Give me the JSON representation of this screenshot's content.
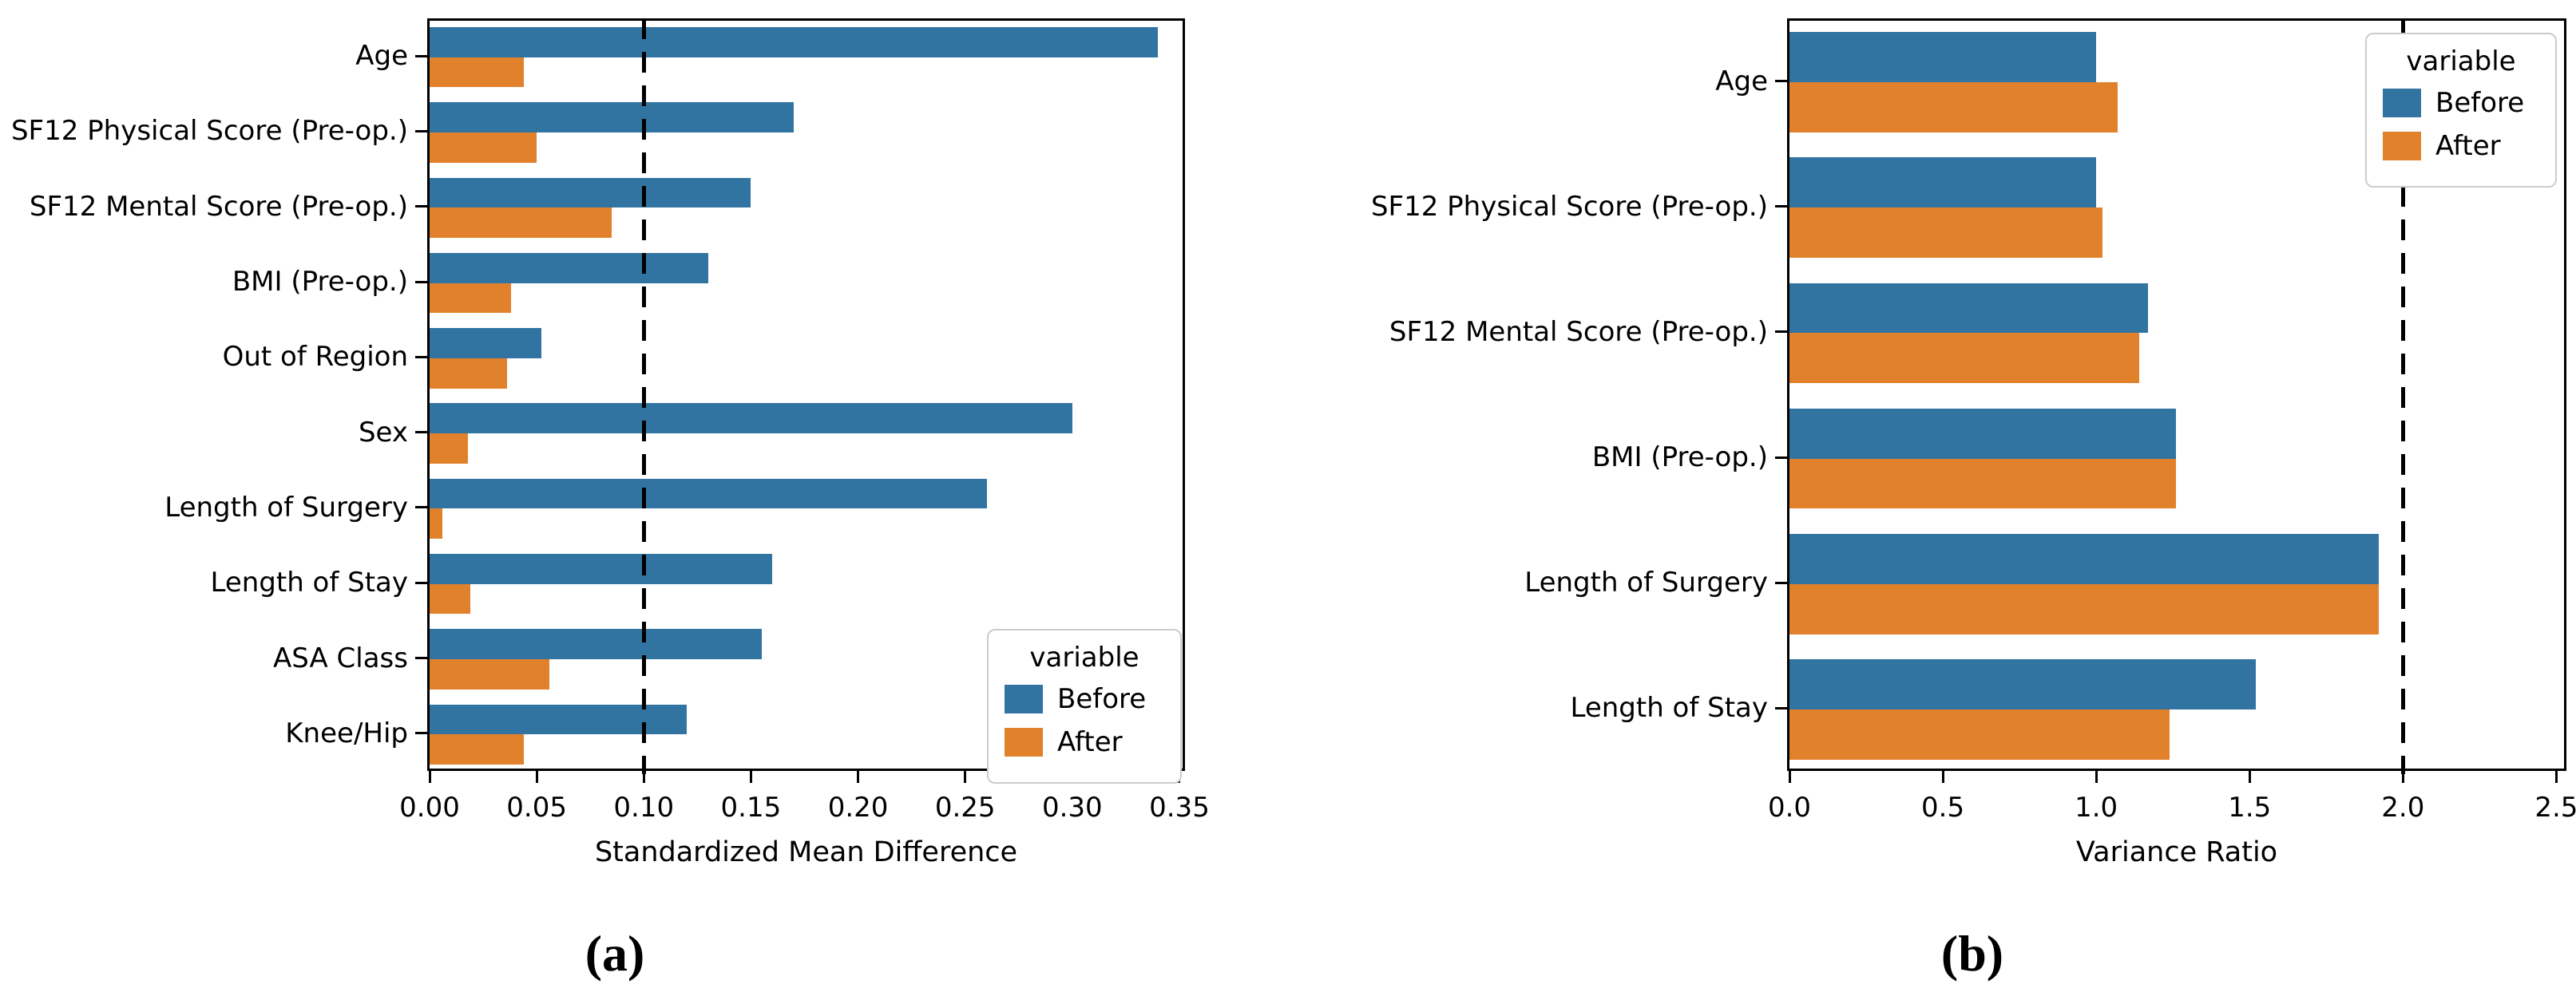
{
  "figure": {
    "colors": {
      "before": "#3274a1",
      "after": "#e1812c"
    },
    "captions": [
      "(a)",
      "(b)"
    ]
  },
  "chart_data": [
    {
      "type": "bar",
      "orientation": "horizontal",
      "caption": "(a)",
      "xlabel": "Standardized Mean Difference",
      "legend_title": "variable",
      "legend_entries": [
        "Before",
        "After"
      ],
      "legend_position": "lower-right",
      "grid": false,
      "categories": [
        "Age",
        "SF12 Physical Score (Pre-op.)",
        "SF12 Mental Score (Pre-op.)",
        "BMI (Pre-op.)",
        "Out of Region",
        "Sex",
        "Length of Surgery",
        "Length of Stay",
        "ASA Class",
        "Knee/Hip"
      ],
      "series": [
        {
          "name": "Before",
          "values": [
            0.34,
            0.17,
            0.15,
            0.13,
            0.052,
            0.3,
            0.26,
            0.16,
            0.155,
            0.12
          ]
        },
        {
          "name": "After",
          "values": [
            0.044,
            0.05,
            0.085,
            0.038,
            0.036,
            0.018,
            0.006,
            0.019,
            0.056,
            0.044
          ]
        }
      ],
      "xlim": [
        0,
        0.3515
      ],
      "xticks": [
        0.0,
        0.05,
        0.1,
        0.15,
        0.2,
        0.25,
        0.3,
        0.35
      ],
      "xtick_decimals": 2,
      "reference_line_x": 0.1
    },
    {
      "type": "bar",
      "orientation": "horizontal",
      "caption": "(b)",
      "xlabel": "Variance Ratio",
      "legend_title": "variable",
      "legend_entries": [
        "Before",
        "After"
      ],
      "legend_position": "upper-right",
      "grid": false,
      "categories": [
        "Age",
        "SF12 Physical Score (Pre-op.)",
        "SF12 Mental Score (Pre-op.)",
        "BMI (Pre-op.)",
        "Length of Surgery",
        "Length of Stay"
      ],
      "series": [
        {
          "name": "Before",
          "values": [
            1.0,
            1.0,
            1.17,
            1.26,
            1.92,
            1.52
          ]
        },
        {
          "name": "After",
          "values": [
            1.07,
            1.02,
            1.14,
            1.26,
            1.92,
            1.24
          ]
        }
      ],
      "xlim": [
        0,
        2.525
      ],
      "xticks": [
        0.0,
        0.5,
        1.0,
        1.5,
        2.0,
        2.5
      ],
      "xtick_decimals": 1,
      "reference_line_x": 2.0
    }
  ]
}
